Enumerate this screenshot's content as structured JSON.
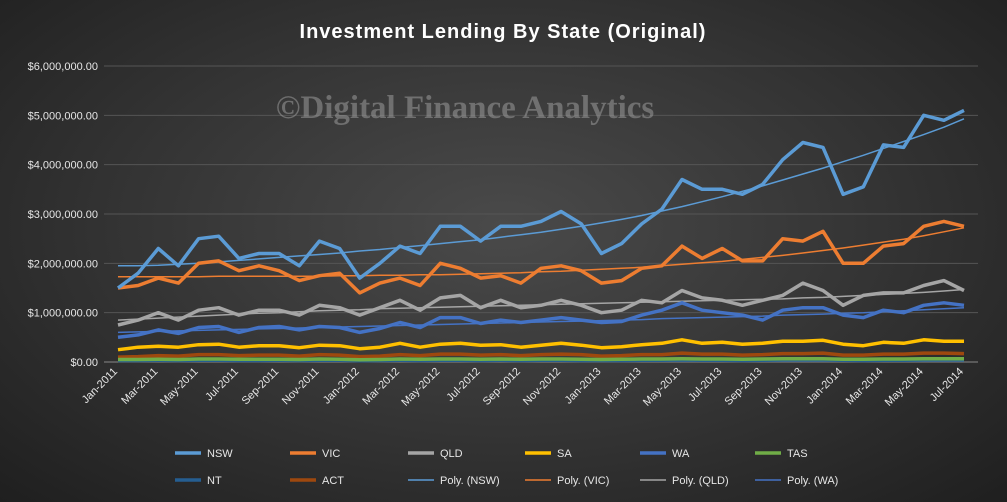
{
  "watermark": "©Digital Finance Analytics",
  "colors": {
    "NSW": "#5b9bd5",
    "VIC": "#ed7d31",
    "QLD": "#a5a5a5",
    "SA": "#ffc000",
    "WA": "#4472c4",
    "TAS": "#70ad47",
    "NT": "#255e91",
    "ACT": "#9e480e",
    "gridline": "#555555",
    "axis": "#888888"
  },
  "chart_data": {
    "type": "line",
    "title": "Investment Lending By State (Original)",
    "xlabel": "",
    "ylabel": "",
    "ylim": [
      0,
      6000000
    ],
    "ytick_values": [
      0,
      1000000,
      2000000,
      3000000,
      4000000,
      5000000,
      6000000
    ],
    "ytick_labels": [
      "$0.00",
      "$1,000,000.00",
      "$2,000,000.00",
      "$3,000,000.00",
      "$4,000,000.00",
      "$5,000,000.00",
      "$6,000,000.00"
    ],
    "grid": true,
    "legend_position": "bottom",
    "x": [
      "Jan-2011",
      "Feb-2011",
      "Mar-2011",
      "Apr-2011",
      "May-2011",
      "Jun-2011",
      "Jul-2011",
      "Aug-2011",
      "Sep-2011",
      "Oct-2011",
      "Nov-2011",
      "Dec-2011",
      "Jan-2012",
      "Feb-2012",
      "Mar-2012",
      "Apr-2012",
      "May-2012",
      "Jun-2012",
      "Jul-2012",
      "Aug-2012",
      "Sep-2012",
      "Oct-2012",
      "Nov-2012",
      "Dec-2012",
      "Jan-2013",
      "Feb-2013",
      "Mar-2013",
      "Apr-2013",
      "May-2013",
      "Jun-2013",
      "Jul-2013",
      "Aug-2013",
      "Sep-2013",
      "Oct-2013",
      "Nov-2013",
      "Dec-2013",
      "Jan-2014",
      "Feb-2014",
      "Mar-2014",
      "Apr-2014",
      "May-2014",
      "Jun-2014",
      "Jul-2014"
    ],
    "x_tick_labels": [
      "Jan-2011",
      "Mar-2011",
      "May-2011",
      "Jul-2011",
      "Sep-2011",
      "Nov-2011",
      "Jan-2012",
      "Mar-2012",
      "May-2012",
      "Jul-2012",
      "Sep-2012",
      "Nov-2012",
      "Jan-2013",
      "Mar-2013",
      "May-2013",
      "Jul-2013",
      "Sep-2013",
      "Nov-2013",
      "Jan-2014",
      "Mar-2014",
      "May-2014",
      "Jul-2014"
    ],
    "series": [
      {
        "name": "NSW",
        "color": "#5b9bd5",
        "values": [
          1500000,
          1800000,
          2300000,
          1950000,
          2500000,
          2550000,
          2100000,
          2200000,
          2200000,
          1950000,
          2450000,
          2300000,
          1700000,
          2000000,
          2350000,
          2200000,
          2750000,
          2750000,
          2450000,
          2750000,
          2750000,
          2850000,
          3050000,
          2800000,
          2200000,
          2400000,
          2800000,
          3100000,
          3700000,
          3500000,
          3500000,
          3400000,
          3600000,
          4100000,
          4450000,
          4350000,
          3400000,
          3550000,
          4400000,
          4350000,
          5000000,
          4900000,
          5100000
        ]
      },
      {
        "name": "VIC",
        "color": "#ed7d31",
        "values": [
          1500000,
          1550000,
          1700000,
          1600000,
          2000000,
          2050000,
          1850000,
          1950000,
          1850000,
          1650000,
          1750000,
          1800000,
          1400000,
          1600000,
          1700000,
          1550000,
          2000000,
          1900000,
          1700000,
          1750000,
          1600000,
          1900000,
          1950000,
          1850000,
          1600000,
          1650000,
          1900000,
          1950000,
          2350000,
          2100000,
          2300000,
          2050000,
          2050000,
          2500000,
          2450000,
          2650000,
          2000000,
          2000000,
          2350000,
          2400000,
          2750000,
          2850000,
          2750000
        ]
      },
      {
        "name": "QLD",
        "color": "#a5a5a5",
        "values": [
          750000,
          850000,
          1000000,
          850000,
          1050000,
          1100000,
          950000,
          1050000,
          1050000,
          950000,
          1150000,
          1100000,
          950000,
          1100000,
          1250000,
          1050000,
          1300000,
          1350000,
          1100000,
          1250000,
          1100000,
          1150000,
          1250000,
          1150000,
          1000000,
          1050000,
          1250000,
          1200000,
          1450000,
          1300000,
          1250000,
          1150000,
          1250000,
          1350000,
          1600000,
          1450000,
          1150000,
          1350000,
          1400000,
          1400000,
          1550000,
          1650000,
          1450000
        ]
      },
      {
        "name": "SA",
        "color": "#ffc000",
        "values": [
          250000,
          300000,
          320000,
          300000,
          350000,
          360000,
          300000,
          330000,
          330000,
          290000,
          340000,
          330000,
          270000,
          300000,
          380000,
          300000,
          360000,
          380000,
          340000,
          350000,
          300000,
          340000,
          380000,
          340000,
          290000,
          310000,
          350000,
          380000,
          450000,
          380000,
          400000,
          360000,
          380000,
          420000,
          420000,
          440000,
          360000,
          330000,
          400000,
          380000,
          450000,
          420000,
          420000
        ]
      },
      {
        "name": "WA",
        "color": "#4472c4",
        "values": [
          500000,
          550000,
          650000,
          580000,
          700000,
          720000,
          600000,
          700000,
          720000,
          650000,
          720000,
          700000,
          600000,
          680000,
          800000,
          700000,
          900000,
          900000,
          780000,
          850000,
          800000,
          850000,
          900000,
          850000,
          800000,
          820000,
          950000,
          1050000,
          1200000,
          1050000,
          1000000,
          950000,
          850000,
          1050000,
          1100000,
          1100000,
          950000,
          900000,
          1050000,
          1000000,
          1150000,
          1200000,
          1150000
        ]
      },
      {
        "name": "TAS",
        "color": "#70ad47",
        "values": [
          50000,
          50000,
          55000,
          50000,
          60000,
          60000,
          55000,
          55000,
          55000,
          50000,
          60000,
          55000,
          45000,
          50000,
          60000,
          55000,
          60000,
          60000,
          55000,
          60000,
          55000,
          60000,
          60000,
          55000,
          50000,
          55000,
          60000,
          60000,
          65000,
          60000,
          60000,
          55000,
          60000,
          65000,
          65000,
          65000,
          55000,
          55000,
          60000,
          60000,
          65000,
          65000,
          65000
        ]
      },
      {
        "name": "NT",
        "color": "#255e91",
        "values": [
          30000,
          30000,
          35000,
          30000,
          35000,
          35000,
          30000,
          30000,
          35000,
          30000,
          35000,
          35000,
          25000,
          30000,
          35000,
          30000,
          35000,
          35000,
          30000,
          35000,
          30000,
          35000,
          35000,
          30000,
          30000,
          30000,
          35000,
          35000,
          40000,
          35000,
          35000,
          30000,
          35000,
          40000,
          40000,
          40000,
          35000,
          30000,
          35000,
          35000,
          40000,
          40000,
          40000
        ]
      },
      {
        "name": "ACT",
        "color": "#9e480e",
        "values": [
          100000,
          110000,
          130000,
          120000,
          150000,
          150000,
          130000,
          140000,
          140000,
          120000,
          150000,
          140000,
          110000,
          120000,
          150000,
          130000,
          160000,
          160000,
          140000,
          150000,
          130000,
          150000,
          160000,
          150000,
          120000,
          130000,
          150000,
          150000,
          180000,
          160000,
          160000,
          140000,
          150000,
          170000,
          170000,
          180000,
          140000,
          140000,
          160000,
          160000,
          180000,
          180000,
          170000
        ]
      }
    ],
    "trendlines": [
      {
        "name": "Poly. (NSW)",
        "color": "#5b9bd5",
        "values": [
          1950000,
          1950000,
          1960000,
          1980000,
          2000000,
          2030000,
          2060000,
          2090000,
          2120000,
          2150000,
          2180000,
          2210000,
          2250000,
          2280000,
          2320000,
          2360000,
          2400000,
          2440000,
          2480000,
          2530000,
          2580000,
          2630000,
          2690000,
          2750000,
          2820000,
          2890000,
          2970000,
          3060000,
          3150000,
          3250000,
          3350000,
          3460000,
          3570000,
          3690000,
          3810000,
          3930000,
          4060000,
          4190000,
          4330000,
          4470000,
          4610000,
          4760000,
          4930000
        ]
      },
      {
        "name": "Poly. (VIC)",
        "color": "#ed7d31",
        "values": [
          1730000,
          1730000,
          1730000,
          1730000,
          1730000,
          1740000,
          1740000,
          1740000,
          1740000,
          1740000,
          1740000,
          1750000,
          1750000,
          1760000,
          1760000,
          1770000,
          1770000,
          1780000,
          1790000,
          1800000,
          1810000,
          1830000,
          1840000,
          1860000,
          1880000,
          1900000,
          1920000,
          1950000,
          1980000,
          2010000,
          2040000,
          2080000,
          2120000,
          2160000,
          2210000,
          2260000,
          2310000,
          2370000,
          2430000,
          2490000,
          2560000,
          2640000,
          2720000
        ]
      },
      {
        "name": "Poly. (QLD)",
        "color": "#a5a5a5",
        "values": [
          850000,
          870000,
          890000,
          910000,
          930000,
          950000,
          970000,
          990000,
          1000000,
          1020000,
          1040000,
          1050000,
          1060000,
          1080000,
          1090000,
          1100000,
          1110000,
          1120000,
          1130000,
          1140000,
          1150000,
          1160000,
          1170000,
          1180000,
          1190000,
          1200000,
          1210000,
          1220000,
          1230000,
          1240000,
          1250000,
          1260000,
          1270000,
          1280000,
          1300000,
          1310000,
          1330000,
          1350000,
          1370000,
          1390000,
          1410000,
          1440000,
          1470000
        ]
      },
      {
        "name": "Poly. (WA)",
        "color": "#4472c4",
        "values": [
          600000,
          610000,
          620000,
          630000,
          640000,
          650000,
          660000,
          670000,
          680000,
          690000,
          700000,
          710000,
          720000,
          730000,
          740000,
          750000,
          760000,
          770000,
          780000,
          790000,
          800000,
          810000,
          820000,
          830000,
          840000,
          850000,
          860000,
          880000,
          890000,
          900000,
          910000,
          920000,
          930000,
          950000,
          960000,
          970000,
          990000,
          1000000,
          1020000,
          1040000,
          1060000,
          1080000,
          1100000
        ]
      }
    ],
    "legend": [
      [
        "NSW",
        "VIC",
        "QLD",
        "SA",
        "WA",
        "TAS"
      ],
      [
        "NT",
        "ACT",
        "Poly. (NSW)",
        "Poly. (VIC)",
        "Poly. (QLD)",
        "Poly. (WA)"
      ]
    ]
  }
}
